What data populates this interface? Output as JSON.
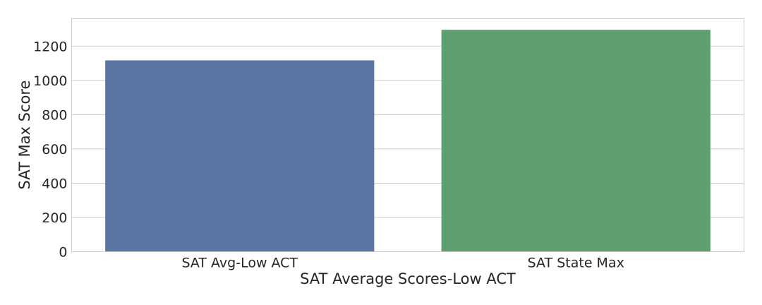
{
  "chart_data": {
    "type": "bar",
    "categories": [
      "SAT Avg-Low ACT",
      "SAT State Max"
    ],
    "values": [
      1117,
      1295
    ],
    "colors": [
      "#5975a4",
      "#5f9e6e"
    ],
    "xlabel": "SAT Average Scores-Low ACT",
    "ylabel": "SAT Max Score",
    "ylim": [
      0,
      1360
    ],
    "yticks": [
      0,
      200,
      400,
      600,
      800,
      1000,
      1200
    ],
    "grid": true,
    "grid_axis": "y",
    "legend": false
  }
}
